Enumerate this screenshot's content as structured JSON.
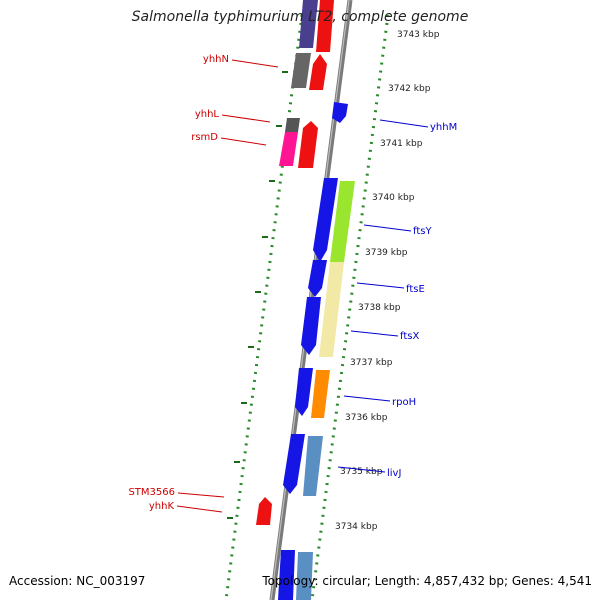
{
  "title": "Salmonella typhimurium LT2, complete genome",
  "footer": {
    "accession": "Accession: NC_003197",
    "summary": "Topology: circular; Length: 4,857,432 bp; Genes: 4,541"
  },
  "colors": {
    "backbone": "#7a7a7a",
    "forward_label": "#cc0000",
    "reverse_label": "#0000cc",
    "dots": "#2a8a2a",
    "dashes": "#1a6a1a"
  },
  "ticks": [
    "3743 kbp",
    "3742 kbp",
    "3741 kbp",
    "3740 kbp",
    "3739 kbp",
    "3738 kbp",
    "3737 kbp",
    "3736 kbp",
    "3735 kbp",
    "3734 kbp"
  ],
  "genes": [
    {
      "name": "yhhN",
      "strand": "forward"
    },
    {
      "name": "yhhL",
      "strand": "forward"
    },
    {
      "name": "rsmD",
      "strand": "forward"
    },
    {
      "name": "yhhM",
      "strand": "reverse"
    },
    {
      "name": "ftsY",
      "strand": "reverse"
    },
    {
      "name": "ftsE",
      "strand": "reverse"
    },
    {
      "name": "ftsX",
      "strand": "reverse"
    },
    {
      "name": "rpoH",
      "strand": "reverse"
    },
    {
      "name": "livJ",
      "strand": "reverse"
    },
    {
      "name": "STM3566",
      "strand": "forward"
    },
    {
      "name": "yhhK",
      "strand": "forward"
    }
  ]
}
